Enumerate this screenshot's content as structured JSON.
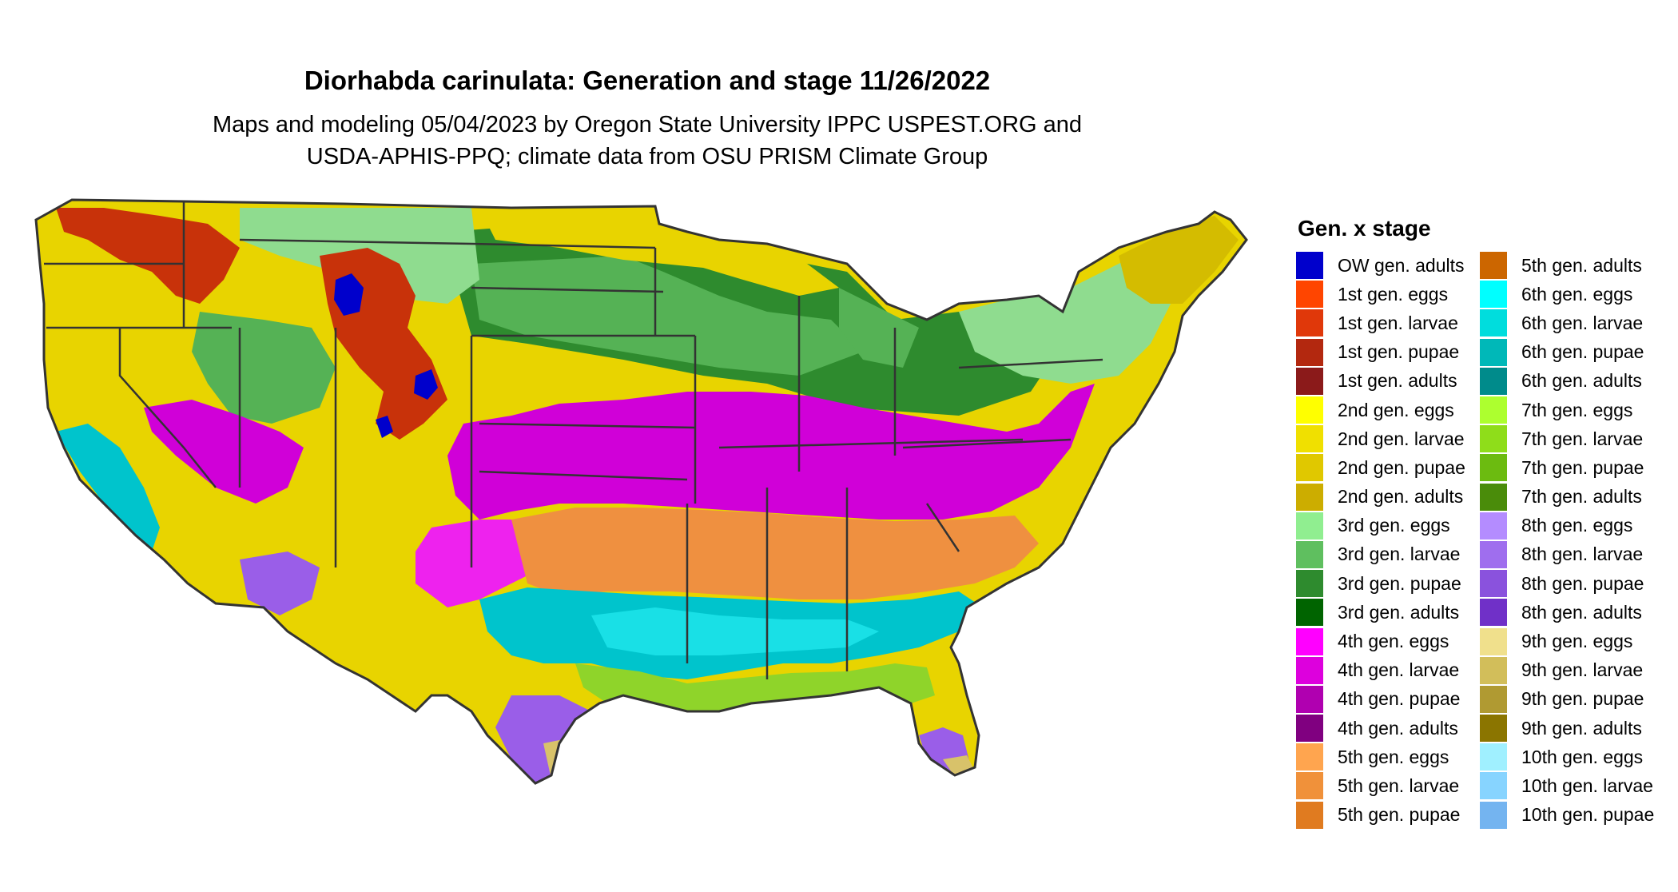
{
  "title": "Diorhabda carinulata: Generation and stage 11/26/2022",
  "subtitle": {
    "line1": "Maps and modeling 05/04/2023 by Oregon State University IPPC USPEST.ORG and",
    "line2": "USDA-APHIS-PPQ; climate data from OSU PRISM Climate Group"
  },
  "legend": {
    "title": "Gen. x stage",
    "items": [
      {
        "label": "OW gen. adults",
        "color": "#0000cc"
      },
      {
        "label": "1st gen. eggs",
        "color": "#ff4500"
      },
      {
        "label": "1st gen. larvae",
        "color": "#e0380a"
      },
      {
        "label": "1st gen. pupae",
        "color": "#b3280f"
      },
      {
        "label": "1st gen. adults",
        "color": "#8b1a1a"
      },
      {
        "label": "2nd gen. eggs",
        "color": "#ffff00"
      },
      {
        "label": "2nd gen. larvae",
        "color": "#f0e000"
      },
      {
        "label": "2nd gen. pupae",
        "color": "#e0c800"
      },
      {
        "label": "2nd gen. adults",
        "color": "#ccad00"
      },
      {
        "label": "3rd gen. eggs",
        "color": "#90ee90"
      },
      {
        "label": "3rd gen. larvae",
        "color": "#5fbf5f"
      },
      {
        "label": "3rd gen. pupae",
        "color": "#2e8b2e"
      },
      {
        "label": "3rd gen. adults",
        "color": "#006400"
      },
      {
        "label": "4th gen. eggs",
        "color": "#ff00ff"
      },
      {
        "label": "4th gen. larvae",
        "color": "#dd00dd"
      },
      {
        "label": "4th gen. pupae",
        "color": "#b000b0"
      },
      {
        "label": "4th gen. adults",
        "color": "#800080"
      },
      {
        "label": "5th gen. eggs",
        "color": "#ffa54f"
      },
      {
        "label": "5th gen. larvae",
        "color": "#f0913a"
      },
      {
        "label": "5th gen. pupae",
        "color": "#e07b20"
      },
      {
        "label": "5th gen. adults",
        "color": "#cc6600"
      },
      {
        "label": "6th gen. eggs",
        "color": "#00ffff"
      },
      {
        "label": "6th gen. larvae",
        "color": "#00dddd"
      },
      {
        "label": "6th gen. pupae",
        "color": "#00b8b8"
      },
      {
        "label": "6th gen. adults",
        "color": "#008b8b"
      },
      {
        "label": "7th gen. eggs",
        "color": "#adff2f"
      },
      {
        "label": "7th gen. larvae",
        "color": "#8fdd1a"
      },
      {
        "label": "7th gen. pupae",
        "color": "#6cbb10"
      },
      {
        "label": "7th gen. adults",
        "color": "#4a8c0a"
      },
      {
        "label": "8th gen. eggs",
        "color": "#b48cff"
      },
      {
        "label": "8th gen. larvae",
        "color": "#9f6eee"
      },
      {
        "label": "8th gen. pupae",
        "color": "#8a52dd"
      },
      {
        "label": "8th gen. adults",
        "color": "#7030c8"
      },
      {
        "label": "9th gen. eggs",
        "color": "#f0e08c"
      },
      {
        "label": "9th gen. larvae",
        "color": "#d2be5a"
      },
      {
        "label": "9th gen. pupae",
        "color": "#b09a32"
      },
      {
        "label": "9th gen. adults",
        "color": "#8b7500"
      },
      {
        "label": "10th gen. eggs",
        "color": "#a0f0ff"
      },
      {
        "label": "10th gen. larvae",
        "color": "#87d4ff"
      },
      {
        "label": "10th gen. pupae",
        "color": "#74b4f0"
      }
    ]
  },
  "map_colors": {
    "border": "#333333",
    "ow_adults": "#0000cc",
    "gen1": "#c8320a",
    "gen2": "#e8d400",
    "gen2_dark": "#d4bc00",
    "gen3_light": "#8fdc8f",
    "gen3": "#55b255",
    "gen3_dark": "#2e8b2e",
    "gen4": "#d000d8",
    "gen4_light": "#ee22ee",
    "gen5": "#ef9040",
    "gen6": "#00c4cc",
    "gen6_light": "#19e0e6",
    "gen7": "#8fd42a",
    "gen8": "#9a5ee8",
    "gen9": "#d8c26a"
  }
}
